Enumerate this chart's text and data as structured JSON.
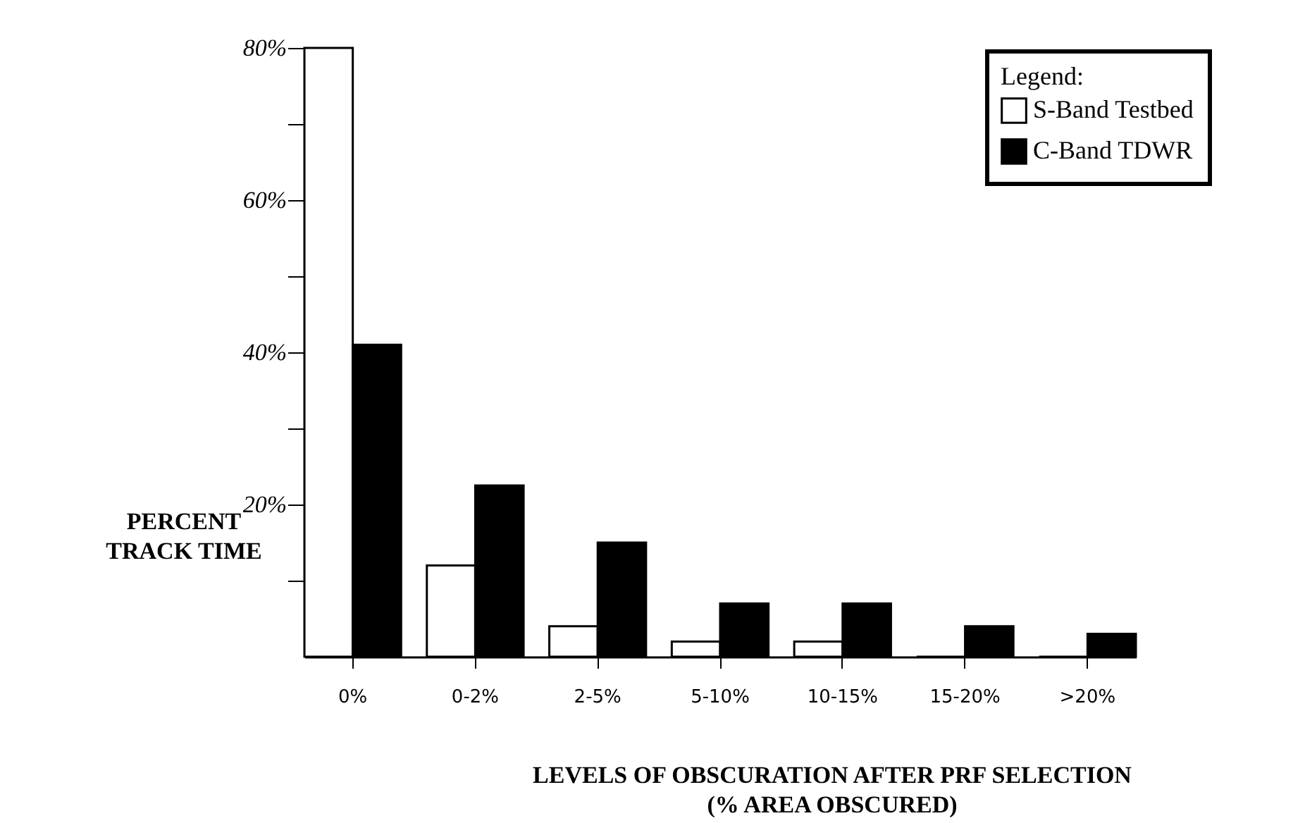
{
  "chart_data": {
    "type": "bar",
    "xlabel": "LEVELS OF OBSCURATION AFTER PRF SELECTION\n(% AREA OBSCURED)",
    "ylabel": "PERCENT\nTRACK TIME",
    "legend_title": "Legend:",
    "legend": "top right",
    "grid": false,
    "categories": [
      "0%",
      "0-2%",
      "2-5%",
      "5-10%",
      "10-15%",
      "15-20%",
      ">20%"
    ],
    "series": [
      {
        "name": "S-Band Testbed",
        "color": "#ffffff",
        "values": [
          80,
          12,
          4,
          2,
          2,
          0,
          0
        ]
      },
      {
        "name": "C-Band TDWR",
        "color": "#000000",
        "values": [
          41,
          22.5,
          15,
          7,
          7,
          4,
          3
        ]
      }
    ],
    "ylim": [
      0,
      80
    ],
    "yticks": [
      {
        "value": 10,
        "label": null
      },
      {
        "value": 20,
        "label": "20%"
      },
      {
        "value": 30,
        "label": null
      },
      {
        "value": 40,
        "label": "40%"
      },
      {
        "value": 50,
        "label": null
      },
      {
        "value": 60,
        "label": "60%"
      },
      {
        "value": 70,
        "label": null
      },
      {
        "value": 80,
        "label": "80%"
      }
    ]
  }
}
